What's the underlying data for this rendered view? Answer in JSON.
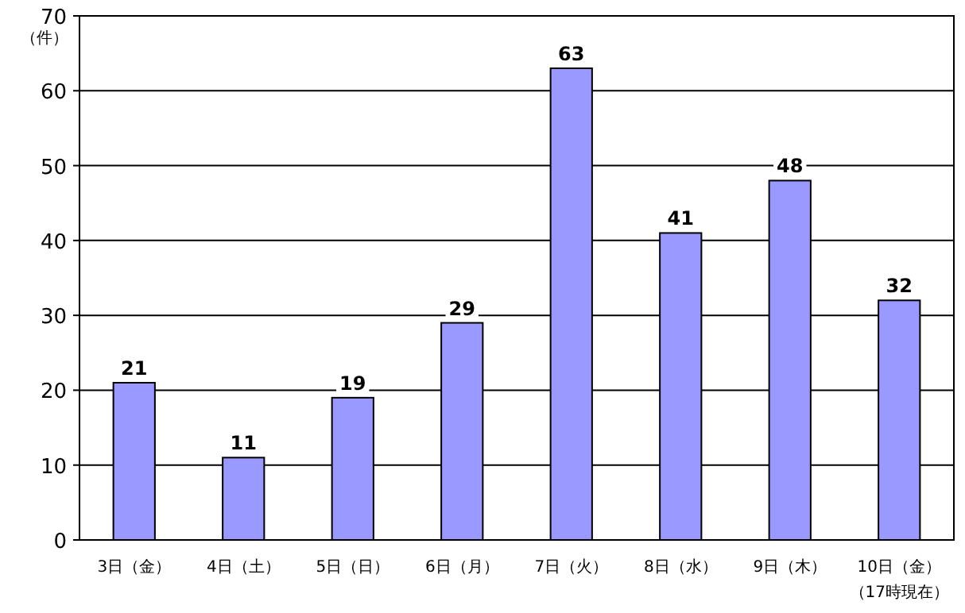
{
  "chart_data": {
    "type": "bar",
    "ylabel": "（件）",
    "categories": [
      "3日（金）",
      "4日（土）",
      "5日（日）",
      "6日（月）",
      "7日（火）",
      "8日（水）",
      "9日（木）",
      "10日（金）（17時現在）"
    ],
    "values": [
      21,
      11,
      19,
      29,
      63,
      41,
      48,
      32
    ],
    "color": "#9999ff",
    "ylim": [
      0,
      70
    ],
    "yticks": [
      0,
      10,
      20,
      30,
      40,
      50,
      60,
      70
    ],
    "grid": "y",
    "data_labels": true
  }
}
